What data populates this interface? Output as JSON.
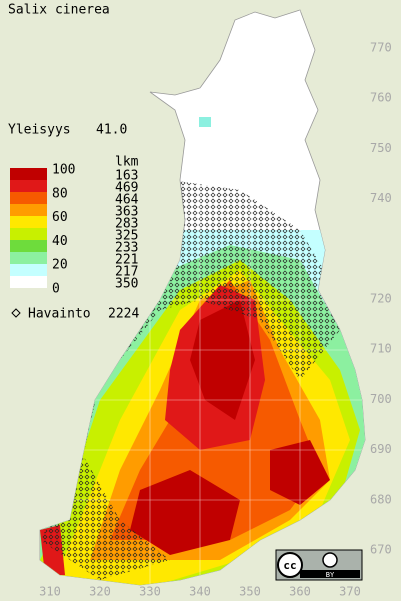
{
  "title": "Salix cinerea",
  "frequency": {
    "label": "Yleisyys",
    "value": "41.0"
  },
  "legend": {
    "levels": [
      "100",
      "80",
      "60",
      "40",
      "20",
      "0"
    ],
    "count_header": "lkm",
    "counts": [
      163,
      469,
      464,
      363,
      283,
      325,
      233,
      221,
      217,
      350
    ],
    "colors": [
      "#c00000",
      "#e01818",
      "#f65a00",
      "#ff9c00",
      "#ffe800",
      "#c8f000",
      "#6edc3c",
      "#8cf0a0",
      "#c4ffff",
      "#ffffff"
    ]
  },
  "observations": {
    "label": "Havainto",
    "count": 2224
  },
  "northing_labels": [
    770,
    760,
    750,
    740,
    720,
    710,
    700,
    690,
    680,
    670
  ],
  "easting_labels": [
    310,
    320,
    330,
    340,
    350,
    360,
    370
  ],
  "license": {
    "icon": "cc",
    "attribution": "BY"
  }
}
